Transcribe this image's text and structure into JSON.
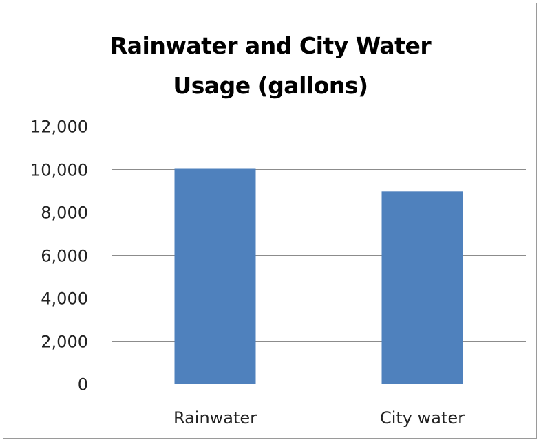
{
  "chart_data": {
    "type": "bar",
    "title_lines": [
      "Rainwater and City Water",
      "Usage (gallons)"
    ],
    "categories": [
      "Rainwater",
      "City water"
    ],
    "values": [
      10000,
      8950
    ],
    "ylim": [
      0,
      12000
    ],
    "yticks": [
      0,
      2000,
      4000,
      6000,
      8000,
      10000,
      12000
    ],
    "ytick_labels": [
      "0",
      "2,000",
      "4,000",
      "6,000",
      "8,000",
      "10,000",
      "12,000"
    ],
    "xlabel": "",
    "ylabel": "",
    "grid": true,
    "legend": "none",
    "bar_color": "#4f81bd",
    "grid_color": "#8c8c8c"
  }
}
